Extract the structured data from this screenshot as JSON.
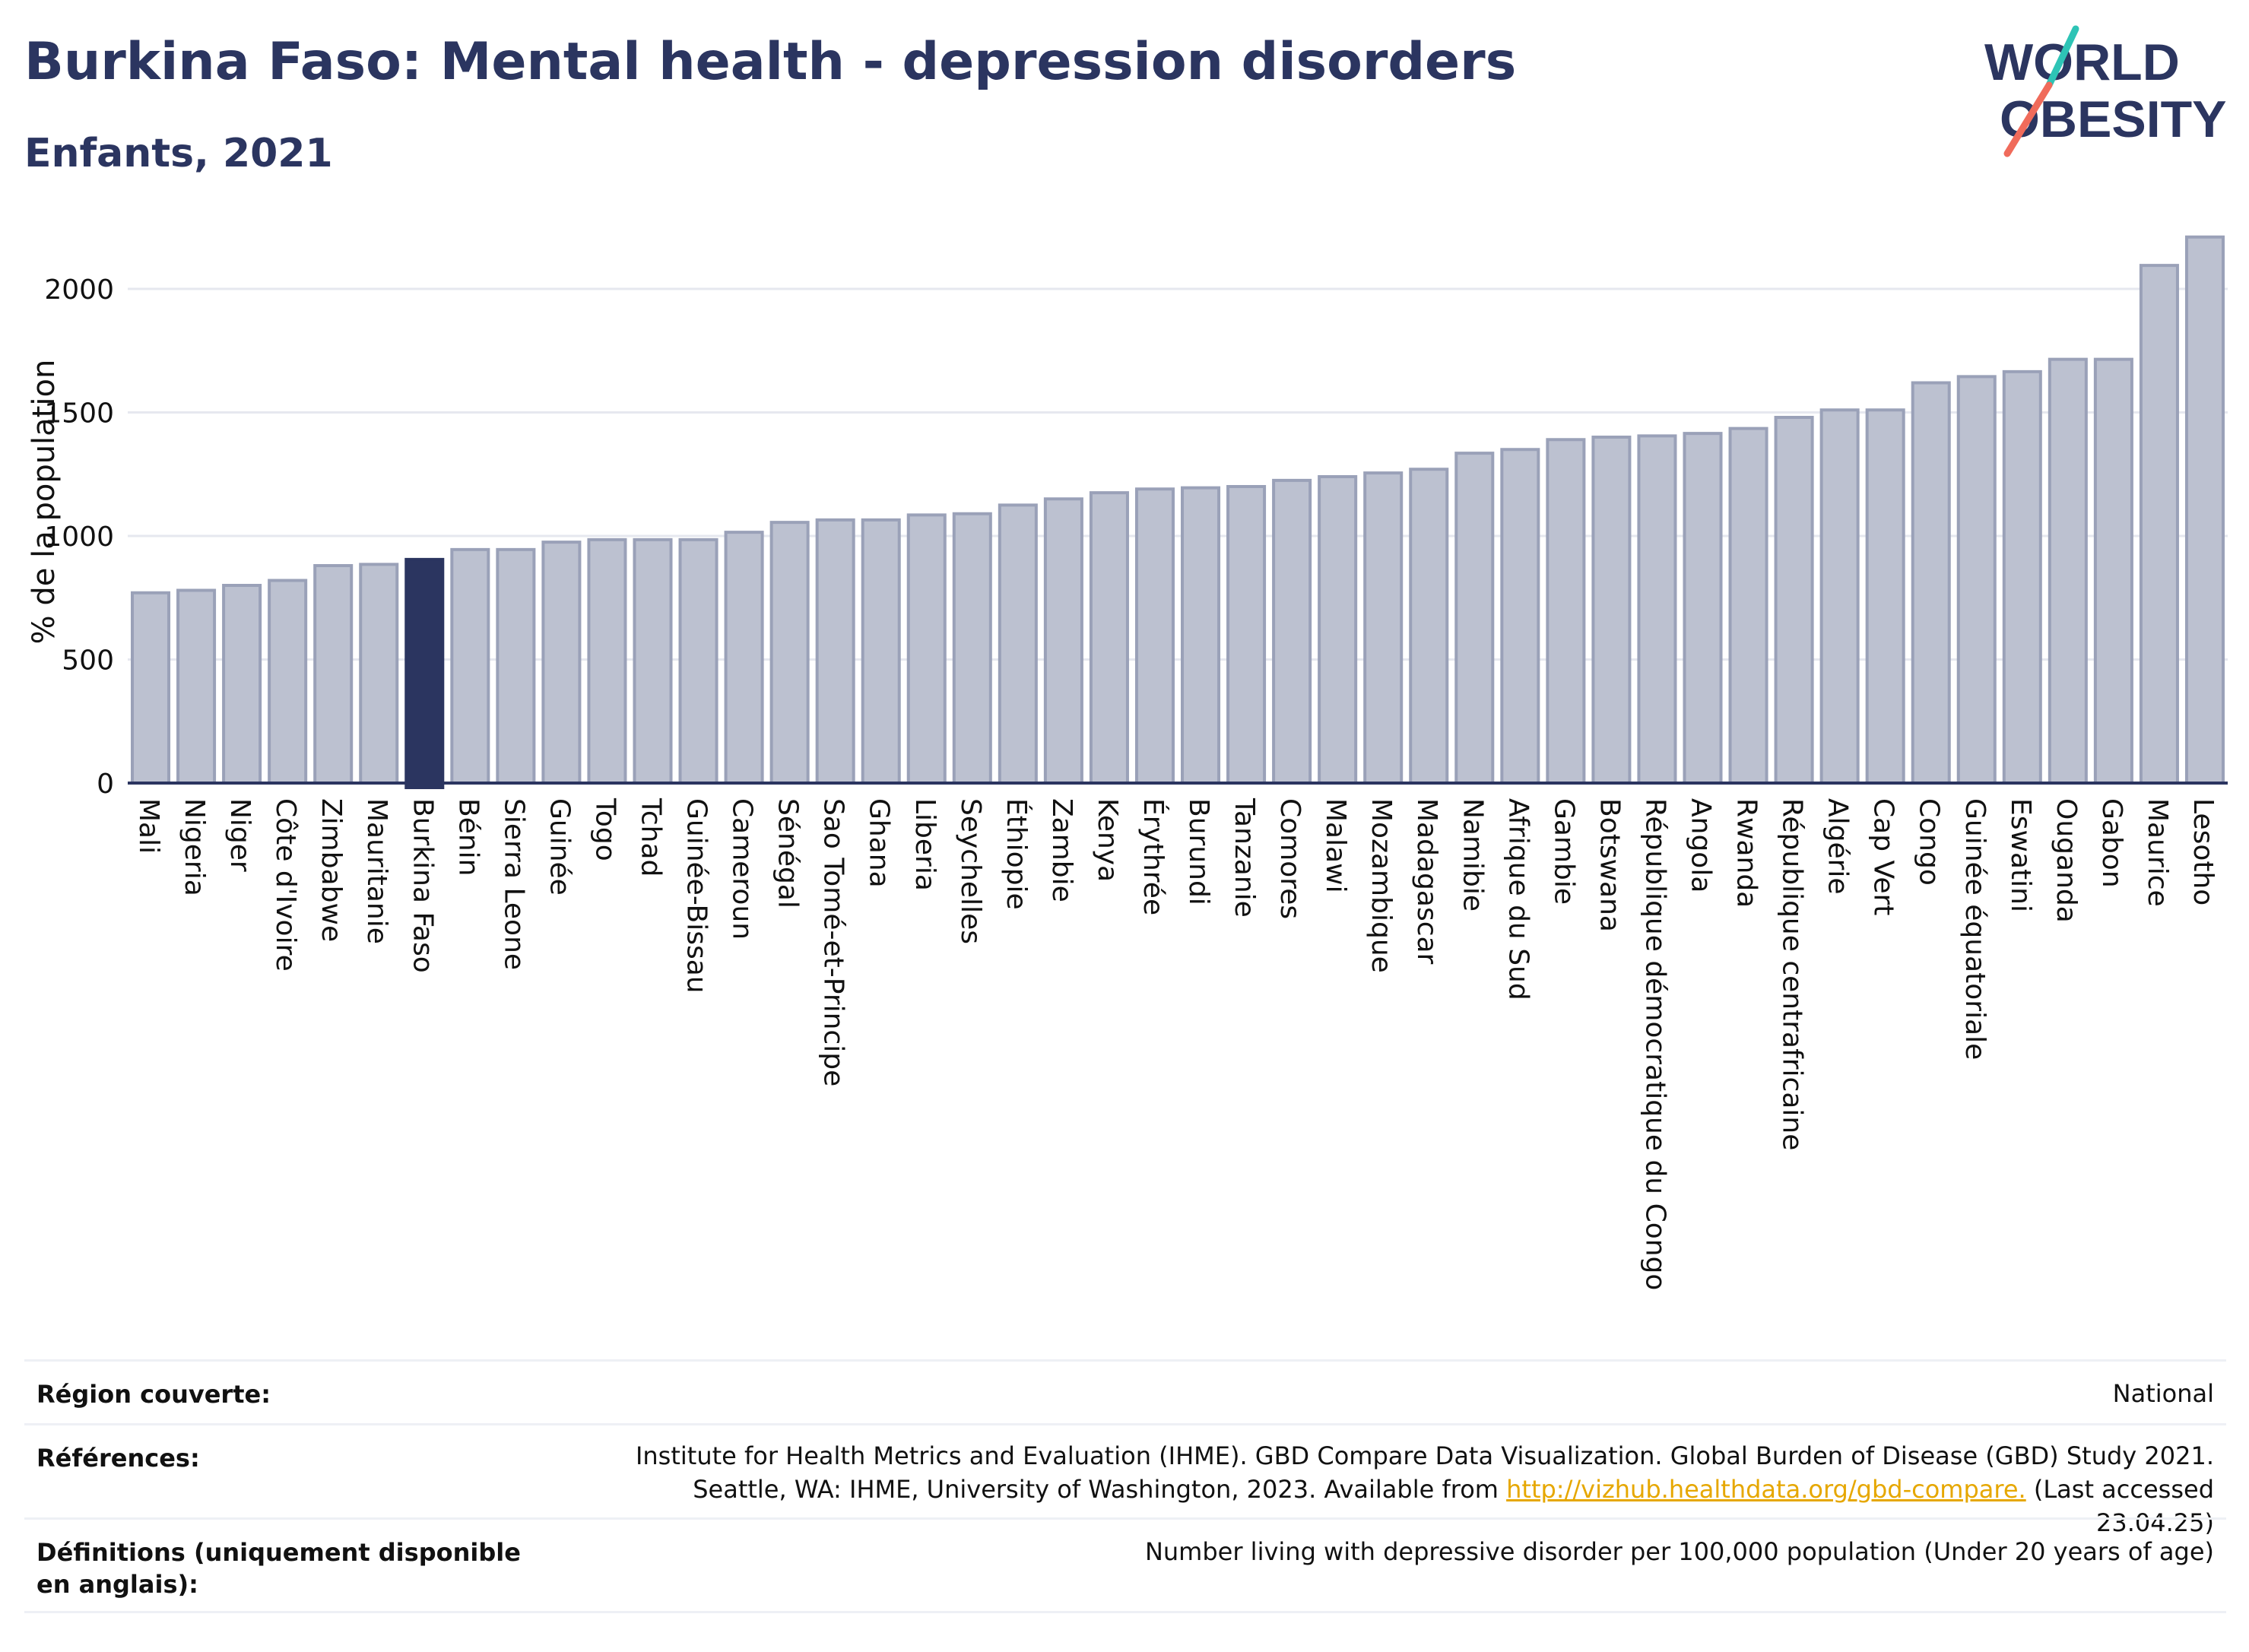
{
  "header": {
    "title": "Burkina Faso: Mental health - depression disorders",
    "subtitle": "Enfants, 2021",
    "logo_line1": "WORLD",
    "logo_line2": "OBESITY"
  },
  "colors": {
    "highlight": "#2b3560",
    "bar": "#bcc1d0",
    "bar_edge": "#9aa1b8",
    "logo_teal": "#2ec4b6",
    "logo_coral": "#f06b5b",
    "link": "#e6a700"
  },
  "chart_data": {
    "type": "bar",
    "title": "Burkina Faso: Mental health - depression disorders",
    "subtitle": "Enfants, 2021",
    "ylabel": "% de la population",
    "xlabel": "",
    "ylim": [
      0,
      2250
    ],
    "yticks": [
      0,
      500,
      1000,
      1500,
      2000
    ],
    "grid": true,
    "highlight": "Burkina Faso",
    "categories": [
      "Mali",
      "Nigeria",
      "Niger",
      "Côte d'Ivoire",
      "Zimbabwe",
      "Mauritanie",
      "Burkina Faso",
      "Bénin",
      "Sierra Leone",
      "Guinée",
      "Togo",
      "Tchad",
      "Guinée-Bissau",
      "Cameroun",
      "Sénégal",
      "Sao Tomé-et-Principe",
      "Ghana",
      "Liberia",
      "Seychelles",
      "Éthiopie",
      "Zambie",
      "Kenya",
      "Érythrée",
      "Burundi",
      "Tanzanie",
      "Comores",
      "Malawi",
      "Mozambique",
      "Madagascar",
      "Namibie",
      "Afrique du Sud",
      "Gambie",
      "Botswana",
      "République démocratique du Congo",
      "Angola",
      "Rwanda",
      "République centrafricaine",
      "Algérie",
      "Cap Vert",
      "Congo",
      "Guinée équatoriale",
      "Eswatini",
      "Ouganda",
      "Gabon",
      "Maurice",
      "Lesotho"
    ],
    "values": [
      770,
      780,
      800,
      820,
      880,
      885,
      905,
      945,
      945,
      975,
      985,
      985,
      985,
      1015,
      1055,
      1065,
      1065,
      1085,
      1090,
      1125,
      1150,
      1175,
      1190,
      1195,
      1200,
      1225,
      1240,
      1255,
      1270,
      1335,
      1350,
      1390,
      1400,
      1405,
      1415,
      1435,
      1480,
      1510,
      1510,
      1620,
      1645,
      1665,
      1715,
      1715,
      2095,
      2210
    ]
  },
  "info": {
    "region_label": "Région couverte:",
    "region_value": "National",
    "references_label": "Références:",
    "references_line1": "Institute for Health Metrics and Evaluation (IHME). GBD Compare Data Visualization. Global Burden of Disease (GBD) Study 2021.",
    "references_line2_pre": "Seattle, WA: IHME, University of Washington, 2023. Available from ",
    "references_link": "http://vizhub.healthdata.org/gbd-compare.",
    "references_line2_post": " (Last accessed 23.04.25)",
    "definitions_label": "Définitions (uniquement disponible en anglais):",
    "definitions_value": "Number living with depressive disorder per 100,000 population (Under 20 years of age)"
  }
}
